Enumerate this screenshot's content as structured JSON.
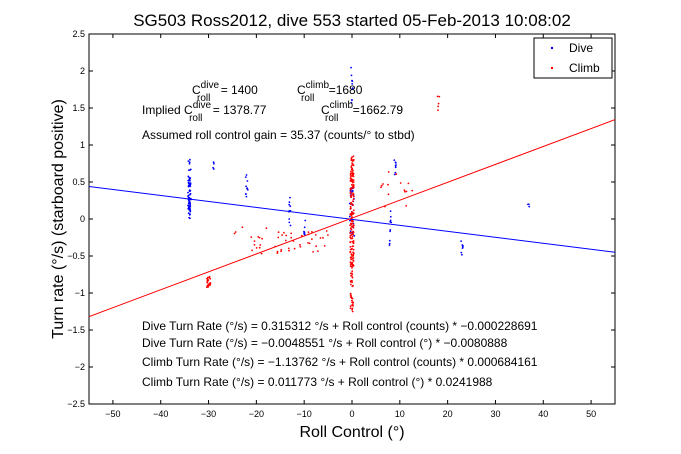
{
  "chart_data": {
    "type": "scatter",
    "title": "SG503 Ross2012, dive 553 started 05-Feb-2013 10:08:02",
    "xlabel": "Roll Control (°)",
    "ylabel": "Turn rate (°/s) (starboard positive)",
    "xlim": [
      -55,
      55
    ],
    "ylim": [
      -2.5,
      2.5
    ],
    "xticks": [
      "−50",
      "−40",
      "−30",
      "−20",
      "−10",
      "0",
      "10",
      "20",
      "30",
      "40",
      "50"
    ],
    "yticks": [
      "2.5",
      "2",
      "1.5",
      "1",
      "0.5",
      "0",
      "−0.5",
      "−1",
      "−1.5",
      "−2",
      "−2.5"
    ],
    "grid": false,
    "legend": "top-right",
    "series": [
      {
        "name": "Dive",
        "color": "#0000ff",
        "marker": "dot"
      },
      {
        "name": "Climb",
        "color": "#ff0000",
        "marker": "dot"
      }
    ],
    "fit_lines": [
      {
        "series": "Dive",
        "color": "#0000ff",
        "intercept": -0.0048551,
        "slope": -0.0080888
      },
      {
        "series": "Climb",
        "color": "#ff0000",
        "intercept": 0.011773,
        "slope": 0.0241988
      }
    ],
    "annotations": {
      "c_dive": {
        "base": "C",
        "sup": "dive",
        "sub": "roll",
        "value": " = 1400"
      },
      "c_climb": {
        "base": "C",
        "sup": "climb",
        "sub": "roll",
        "value": " =1680"
      },
      "implied_prefix": "Implied ",
      "implied_dive": {
        "base": "C",
        "sup": "dive",
        "sub": "roll",
        "value": " = 1378.77"
      },
      "implied_climb": {
        "base": "C",
        "sup": "climb",
        "sub": "roll",
        "value": " =1662.79"
      },
      "gain": "Assumed roll control gain = 35.37 (counts/° to stbd)",
      "fit_texts": [
        "Dive Turn Rate (°/s) = 0.315312 °/s + Roll control (counts) * −0.000228691",
        "Dive Turn Rate (°/s) = −0.0048551 °/s + Roll control (°) * −0.0080888",
        "Climb Turn Rate (°/s) = −1.13762 °/s + Roll control (counts) * 0.000684161",
        "Climb Turn Rate (°/s) = 0.011773 °/s + Roll control (°) * 0.0241988"
      ]
    }
  }
}
